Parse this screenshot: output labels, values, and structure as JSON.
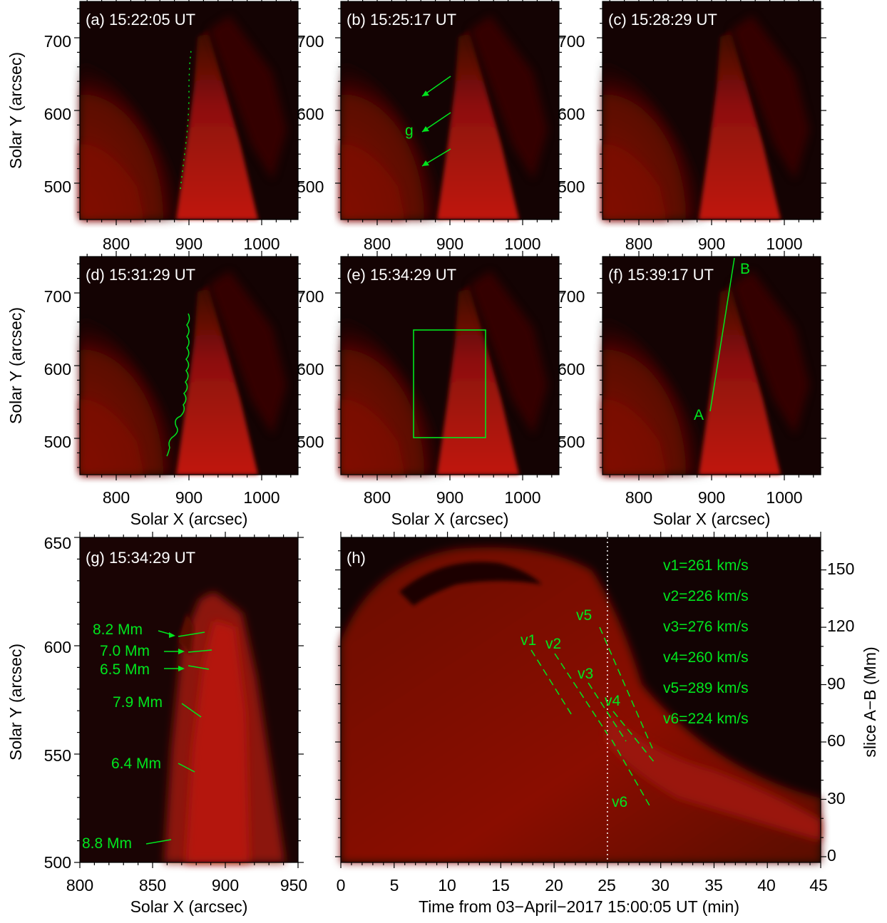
{
  "colors": {
    "image_bg": "#120303",
    "plasma": "#b01208",
    "annotation": "#00e61e",
    "axes": "#000000"
  },
  "panels_top": [
    {
      "id": "a",
      "title": "(a) 15:22:05 UT"
    },
    {
      "id": "b",
      "title": "(b) 15:25:17 UT"
    },
    {
      "id": "c",
      "title": "(c) 15:28:29 UT"
    },
    {
      "id": "d",
      "title": "(d) 15:31:29 UT"
    },
    {
      "id": "e",
      "title": "(e) 15:34:29 UT"
    },
    {
      "id": "f",
      "title": "(f) 15:39:17 UT"
    }
  ],
  "axes_top": {
    "xlabel": "Solar X (arcsec)",
    "ylabel": "Solar Y (arcsec)",
    "xticks": [
      "800",
      "900",
      "1000"
    ],
    "yticks": [
      "700",
      "600",
      "500"
    ],
    "xlim": [
      750,
      1050
    ],
    "ylim": [
      450,
      750
    ]
  },
  "annotations_top": {
    "g_label": "g",
    "slice_a": "A",
    "slice_b": "B"
  },
  "panel_g": {
    "title": "(g) 15:34:29 UT",
    "xlabel": "Solar X (arcsec)",
    "ylabel": "Solar Y (arcsec)",
    "xticks": [
      "800",
      "850",
      "900",
      "950"
    ],
    "yticks": [
      "650",
      "600",
      "550",
      "500"
    ],
    "xlim": [
      800,
      950
    ],
    "ylim": [
      500,
      650
    ],
    "widths": [
      "8.2 Mm",
      "7.0 Mm",
      "6.5 Mm",
      "7.9 Mm",
      "6.4 Mm",
      "8.8 Mm"
    ]
  },
  "panel_h": {
    "title": "(h)",
    "xlabel": "Time from 03−April−2017 15:00:05 UT (min)",
    "ylabel": "slice A−B (Mm)",
    "xticks": [
      "0",
      "5",
      "10",
      "15",
      "20",
      "25",
      "30",
      "35",
      "40",
      "45"
    ],
    "yticks": [
      "150",
      "120",
      "90",
      "60",
      "30",
      "0"
    ],
    "xlim": [
      0,
      45
    ],
    "ylim": [
      -3,
      167
    ],
    "marked_time_min": 25,
    "velocity_names": [
      "v1",
      "v2",
      "v3",
      "v4",
      "v5",
      "v6"
    ],
    "velocities": [
      "v1=261 km/s",
      "v2=226 km/s",
      "v3=276 km/s",
      "v4=260 km/s",
      "v5=289 km/s",
      "v6=224 km/s"
    ]
  }
}
